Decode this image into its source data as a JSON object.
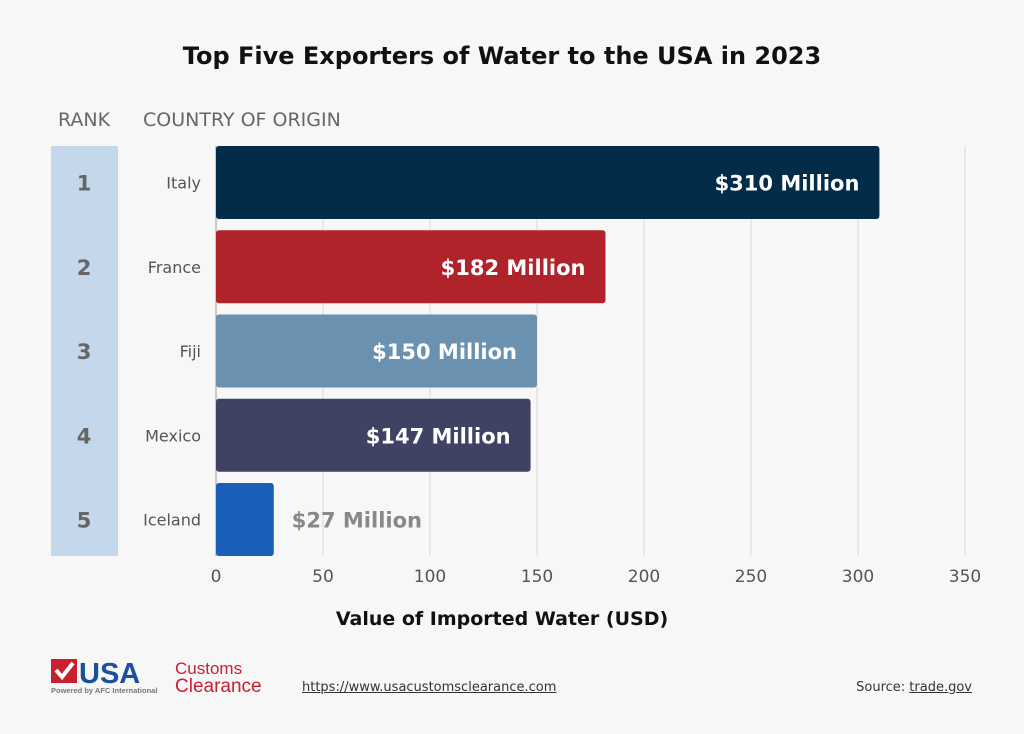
{
  "chart_data": {
    "type": "bar",
    "orientation": "horizontal",
    "title": "Top Five Exporters of Water to the USA in 2023",
    "xlabel": "Value of Imported Water (USD)",
    "rank_header": "RANK",
    "category_header": "COUNTRY OF ORIGIN",
    "ranks": [
      "1",
      "2",
      "3",
      "4",
      "5"
    ],
    "categories": [
      "Italy",
      "France",
      "Fiji",
      "Mexico",
      "Iceland"
    ],
    "values": [
      310,
      182,
      150,
      147,
      27
    ],
    "data_labels": [
      "$310 Million",
      "$182 Million",
      "$150 Million",
      "$147 Million",
      "$27 Million"
    ],
    "colors": [
      "#022c47",
      "#b0232b",
      "#6b91b0",
      "#3f4263",
      "#175fb8"
    ],
    "xlim": [
      0,
      350
    ],
    "xticks": [
      0,
      50,
      100,
      150,
      200,
      250,
      300,
      350
    ],
    "grid": true
  },
  "footer": {
    "logo_text": "USA Customs Clearance",
    "logo_tagline": "Powered by AFC International",
    "url": "https://www.usacustomsclearance.com",
    "source_label": "Source:",
    "source_link": "trade.gov"
  }
}
